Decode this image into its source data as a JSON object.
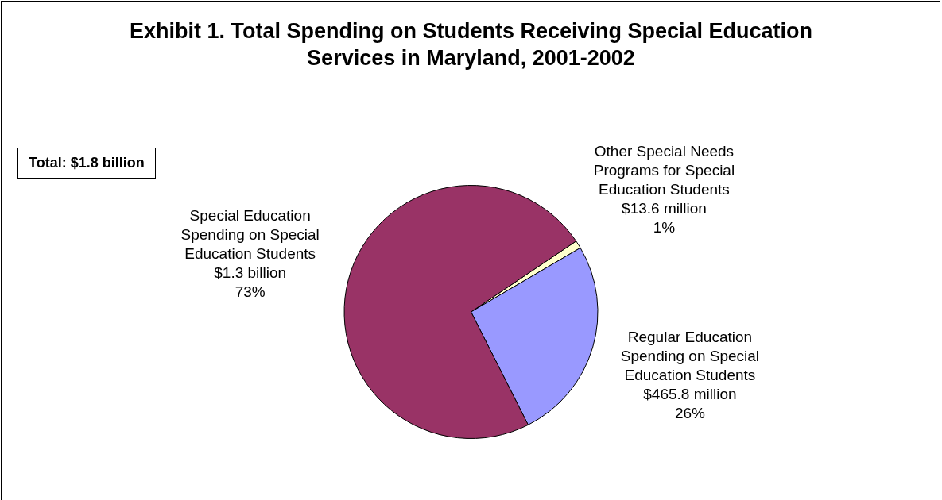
{
  "chart_data": {
    "type": "pie",
    "title": "Exhibit 1. Total Spending on Students Receiving Special Education Services in Maryland, 2001-2002",
    "categories": [
      "Other Special Needs Programs for Special Education Students",
      "Regular Education Spending on Special Education Students",
      "Special Education Spending on Special Education Students"
    ],
    "values": [
      1,
      26,
      73
    ],
    "colors": [
      "#ffffcc",
      "#9999ff",
      "#993366"
    ],
    "value_labels": [
      "$13.6 million\n1%",
      "$465.8 million\n26%",
      "$1.3 billion\n73%"
    ],
    "annotations": [
      "Total: $1.8 billion"
    ],
    "legend": false
  }
}
